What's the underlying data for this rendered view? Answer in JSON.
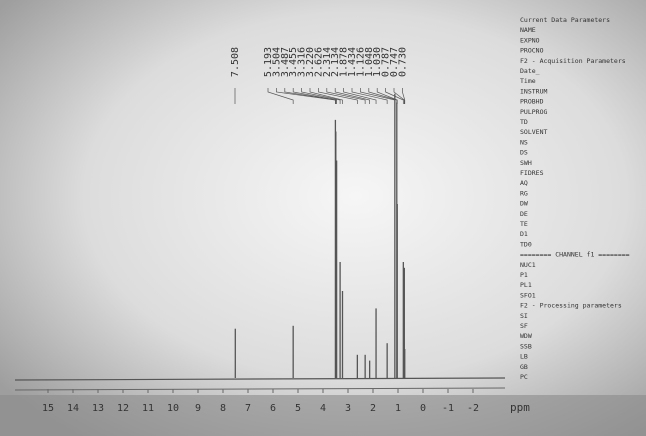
{
  "chart_data": {
    "type": "stick",
    "x_label": "ppm",
    "x": [
      7.508,
      5.193,
      3.504,
      3.487,
      3.455,
      3.316,
      3.22,
      2.626,
      2.314,
      2.134,
      1.878,
      1.434,
      1.126,
      1.048,
      1.03,
      0.787,
      0.747,
      0.73
    ],
    "x_labels": [
      "7.508",
      "5.193",
      "3.504",
      "3.487",
      "3.455",
      "3.316",
      "3.220",
      "2.626",
      "2.314",
      "2.134",
      "1.878",
      "1.434",
      "1.126",
      "1.048",
      "1.030",
      "0.787",
      "0.747",
      "0.730"
    ],
    "values": [
      17,
      18,
      89,
      85,
      75,
      40,
      30,
      8,
      8,
      6,
      24,
      12,
      98,
      95,
      60,
      40,
      38,
      10
    ],
    "color": "#555555",
    "xlim": [
      16,
      -3
    ],
    "ylim": [
      0,
      100
    ],
    "xticks": [
      15,
      14,
      13,
      12,
      11,
      10,
      9,
      8,
      7,
      6,
      5,
      4,
      3,
      2,
      1,
      0,
      -1,
      -2
    ]
  },
  "parameter_panel": {
    "lines": [
      "Current Data Parameters",
      "NAME",
      "EXPNO",
      "PROCNO",
      "F2 - Acquisition Parameters",
      "Date_",
      "Time",
      "INSTRUM",
      "PROBHD",
      "PULPROG",
      "TD",
      "SOLVENT",
      "NS",
      "DS",
      "SWH",
      "FIDRES",
      "AQ",
      "RG",
      "DW",
      "DE",
      "TE",
      "D1",
      "TD0",
      "======== CHANNEL f1 ========",
      "NUC1",
      "P1",
      "PL1",
      "SFO1",
      "F2 - Processing parameters",
      "SI",
      "SF",
      "WDW",
      "SSB",
      "LB",
      "GB",
      "PC"
    ]
  }
}
